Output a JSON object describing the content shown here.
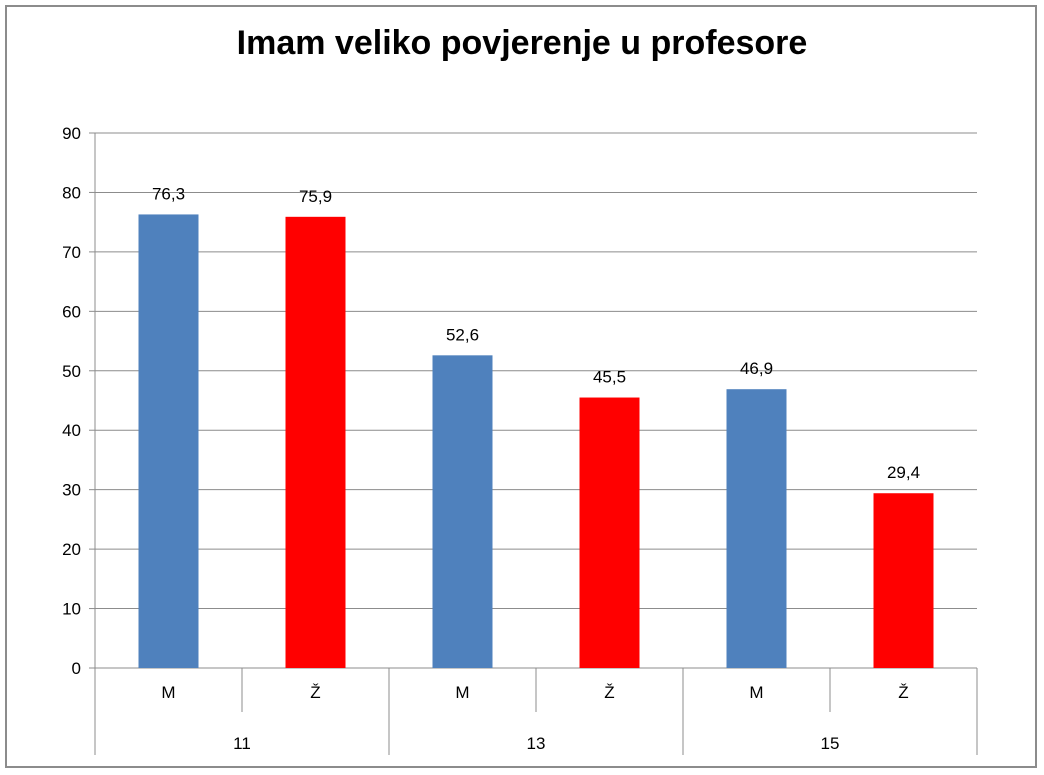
{
  "chart_data": {
    "type": "bar",
    "title": "Imam veliko povjerenje u profesore",
    "xlabel": "",
    "ylabel": "",
    "ylim": [
      0,
      90
    ],
    "yticks": [
      0,
      10,
      20,
      30,
      40,
      50,
      60,
      70,
      80,
      90
    ],
    "grid": true,
    "legend": "none",
    "groups": [
      "11",
      "13",
      "15"
    ],
    "categories": [
      "M",
      "Ž",
      "M",
      "Ž",
      "M",
      "Ž"
    ],
    "values": [
      76.3,
      75.9,
      52.6,
      45.5,
      46.9,
      29.4
    ],
    "data_labels": [
      "76,3",
      "75,9",
      "52,6",
      "45,5",
      "46,9",
      "29,4"
    ],
    "colors": {
      "M": "#4f81bd",
      "Ž": "#ff0000",
      "grid": "#8c8c8c",
      "axis": "#8c8c8c"
    }
  }
}
